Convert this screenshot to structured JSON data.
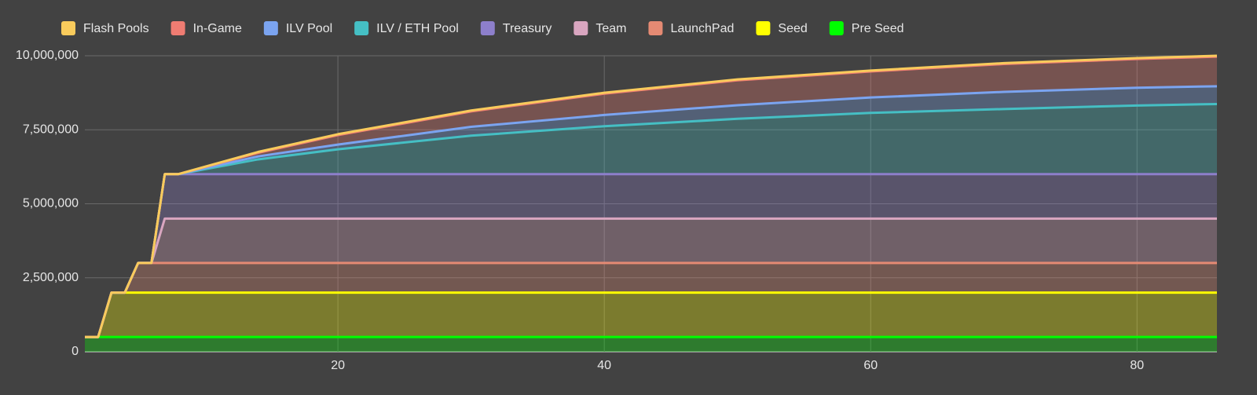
{
  "chart_data": {
    "type": "stacked-area",
    "x": [
      1,
      2,
      3,
      4,
      5,
      6,
      7,
      8,
      14,
      20,
      30,
      40,
      50,
      60,
      70,
      80,
      86
    ],
    "series": [
      {
        "name": "Flash Pools",
        "color": "#f9cb5c",
        "values": [
          0,
          0,
          0,
          0,
          0,
          0,
          0,
          0,
          30000,
          30000,
          30000,
          30000,
          30000,
          30000,
          30000,
          30000,
          30000
        ]
      },
      {
        "name": "In-Game",
        "color": "#ef7c72",
        "values": [
          0,
          0,
          0,
          0,
          0,
          0,
          0,
          0,
          120000,
          320000,
          520000,
          720000,
          840000,
          880000,
          940000,
          970000,
          1000000
        ]
      },
      {
        "name": "ILV Pool",
        "color": "#7ba4f0",
        "values": [
          0,
          0,
          0,
          0,
          0,
          0,
          0,
          0,
          100000,
          160000,
          300000,
          380000,
          460000,
          520000,
          580000,
          600000,
          600000
        ]
      },
      {
        "name": "ILV / ETH Pool",
        "color": "#45bfc4",
        "values": [
          0,
          0,
          0,
          0,
          0,
          0,
          0,
          0,
          500000,
          840000,
          1300000,
          1620000,
          1870000,
          2070000,
          2200000,
          2320000,
          2370000
        ]
      },
      {
        "name": "Treasury",
        "color": "#8d7fcb",
        "values": [
          0,
          0,
          0,
          0,
          0,
          0,
          1500000,
          1500000,
          1500000,
          1500000,
          1500000,
          1500000,
          1500000,
          1500000,
          1500000,
          1500000,
          1500000
        ]
      },
      {
        "name": "Team",
        "color": "#d9a6c0",
        "values": [
          0,
          0,
          0,
          0,
          0,
          0,
          1500000,
          1500000,
          1500000,
          1500000,
          1500000,
          1500000,
          1500000,
          1500000,
          1500000,
          1500000,
          1500000
        ]
      },
      {
        "name": "LaunchPad",
        "color": "#e58a73",
        "values": [
          0,
          0,
          0,
          0,
          1000000,
          1000000,
          1000000,
          1000000,
          1000000,
          1000000,
          1000000,
          1000000,
          1000000,
          1000000,
          1000000,
          1000000,
          1000000
        ]
      },
      {
        "name": "Seed",
        "color": "#ffff00",
        "values": [
          0,
          0,
          1500000,
          1500000,
          1500000,
          1500000,
          1500000,
          1500000,
          1500000,
          1500000,
          1500000,
          1500000,
          1500000,
          1500000,
          1500000,
          1500000,
          1500000
        ]
      },
      {
        "name": "Pre Seed",
        "color": "#00ff00",
        "values": [
          500000,
          500000,
          500000,
          500000,
          500000,
          500000,
          500000,
          500000,
          500000,
          500000,
          500000,
          500000,
          500000,
          500000,
          500000,
          500000,
          500000
        ]
      }
    ],
    "xlim": [
      1,
      86
    ],
    "ylim": [
      0,
      10000000
    ],
    "xticks": [
      20,
      40,
      60,
      80
    ],
    "yticks": [
      0,
      {
        "value": 2500000,
        "label": "2,500,000"
      },
      {
        "value": 5000000,
        "label": "5,000,000"
      },
      {
        "value": 7500000,
        "label": "7,500,000"
      },
      {
        "value": 10000000,
        "label": "10,000,000"
      }
    ],
    "grid": true,
    "legend": "top"
  }
}
